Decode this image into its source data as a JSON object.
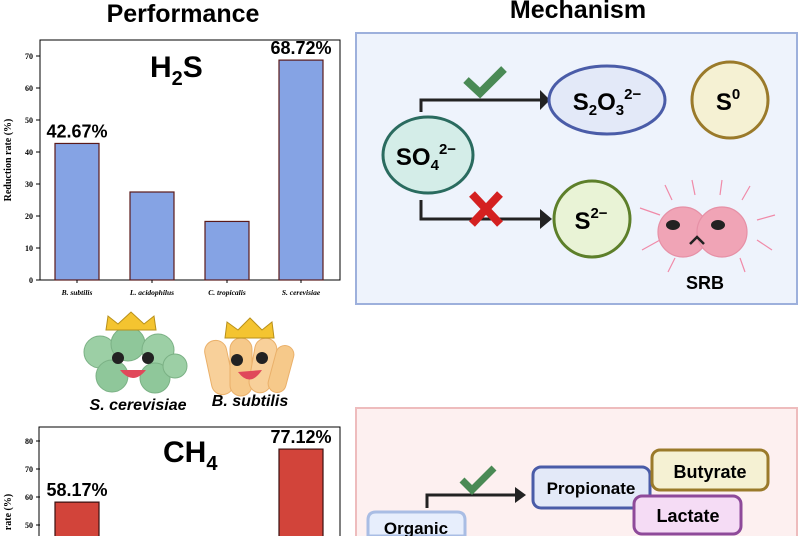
{
  "headings": {
    "left": "Performance",
    "right": "Mechanism"
  },
  "chart_data": [
    {
      "type": "bar",
      "title": "H₂S",
      "title_main": "H",
      "title_sub": "2",
      "title_tail": "S",
      "ylabel": "Reduction rate (%)",
      "categories": [
        "B. subtilis",
        "L. acidophilus",
        "C. tropicalis",
        "S. cerevisiae"
      ],
      "values": [
        42.67,
        27.5,
        18.3,
        68.72
      ],
      "data_labels": [
        "42.67%",
        "",
        "",
        "68.72%"
      ],
      "ylim": [
        0,
        75
      ],
      "yticks": [
        0,
        10,
        20,
        30,
        40,
        50,
        60,
        70
      ],
      "color": "#85a3e4",
      "edge_color": "#5a1a1a",
      "grid": false
    },
    {
      "type": "bar",
      "title": "CH₄",
      "title_main": "CH",
      "title_sub": "4",
      "ylabel": "Reduction rate (%)",
      "ylabel_visible": "rate (%)",
      "values": [
        58.17,
        null,
        null,
        77.12
      ],
      "data_labels": [
        "58.17%",
        "",
        "",
        "77.12%"
      ],
      "yticks": [
        50,
        60,
        70,
        80
      ],
      "color": "#d2443a",
      "edge_color": "#3a1010",
      "grid": false
    }
  ],
  "mascots": [
    {
      "name": "S. cerevisiae",
      "color": "#8fc79a"
    },
    {
      "name": "B. subtilis",
      "color": "#f6c98a"
    }
  ],
  "mechanism_top": {
    "source": {
      "main": "SO",
      "sub": "4",
      "sup": "2−"
    },
    "product_ok": {
      "main1": "S",
      "sub1": "2",
      "main2": "O",
      "sub2": "3",
      "sup": "2−"
    },
    "other": {
      "main": "S",
      "sup": "0"
    },
    "product_blocked": {
      "main": "S",
      "sup": "2−"
    },
    "organism": "SRB",
    "check_color": "#4a8a55",
    "cross_color": "#d42020"
  },
  "mechanism_bottom": {
    "source": "Organic",
    "products": [
      "Propionate",
      "Butyrate",
      "Lactate"
    ]
  }
}
